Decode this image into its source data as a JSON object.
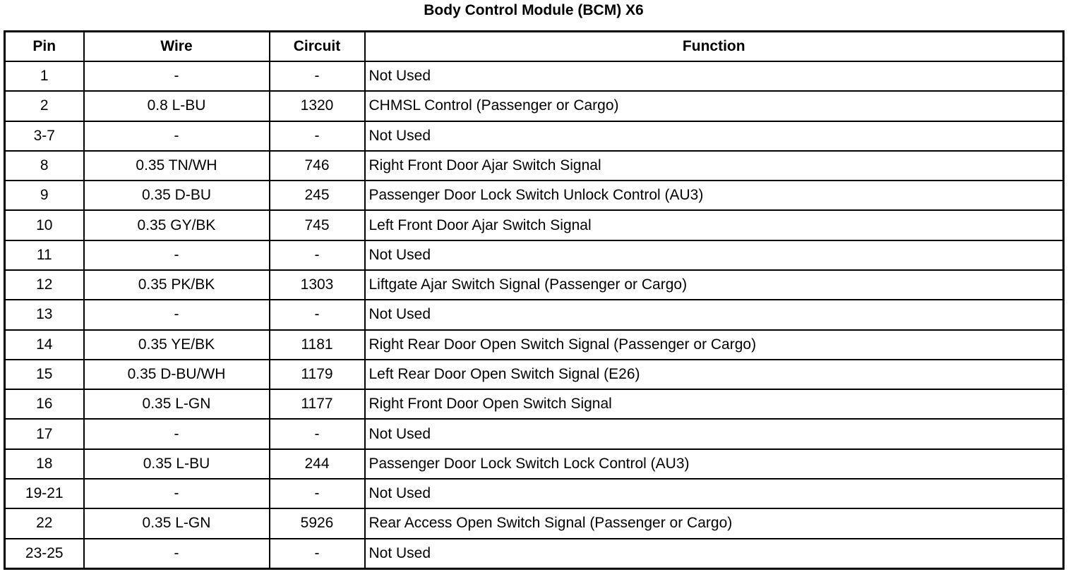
{
  "title": "Body Control Module (BCM) X6",
  "headers": {
    "pin": "Pin",
    "wire": "Wire",
    "circuit": "Circuit",
    "function": "Function"
  },
  "rows": [
    {
      "pin": "1",
      "wire": "-",
      "circuit": "-",
      "function": "Not Used"
    },
    {
      "pin": "2",
      "wire": "0.8 L-BU",
      "circuit": "1320",
      "function": "CHMSL Control (Passenger or Cargo)"
    },
    {
      "pin": "3-7",
      "wire": "-",
      "circuit": "-",
      "function": "Not Used"
    },
    {
      "pin": "8",
      "wire": "0.35 TN/WH",
      "circuit": "746",
      "function": "Right Front Door Ajar Switch Signal"
    },
    {
      "pin": "9",
      "wire": "0.35 D-BU",
      "circuit": "245",
      "function": "Passenger Door Lock Switch Unlock Control (AU3)"
    },
    {
      "pin": "10",
      "wire": "0.35 GY/BK",
      "circuit": "745",
      "function": "Left Front Door Ajar Switch Signal"
    },
    {
      "pin": "11",
      "wire": "-",
      "circuit": "-",
      "function": "Not Used"
    },
    {
      "pin": "12",
      "wire": "0.35 PK/BK",
      "circuit": "1303",
      "function": "Liftgate Ajar Switch Signal (Passenger or Cargo)"
    },
    {
      "pin": "13",
      "wire": "-",
      "circuit": "-",
      "function": "Not Used"
    },
    {
      "pin": "14",
      "wire": "0.35 YE/BK",
      "circuit": "1181",
      "function": "Right Rear Door Open Switch Signal (Passenger or Cargo)"
    },
    {
      "pin": "15",
      "wire": "0.35 D-BU/WH",
      "circuit": "1179",
      "function": "Left Rear Door Open Switch Signal (E26)"
    },
    {
      "pin": "16",
      "wire": "0.35 L-GN",
      "circuit": "1177",
      "function": "Right Front Door Open Switch Signal"
    },
    {
      "pin": "17",
      "wire": "-",
      "circuit": "-",
      "function": "Not Used"
    },
    {
      "pin": "18",
      "wire": "0.35 L-BU",
      "circuit": "244",
      "function": "Passenger Door Lock Switch Lock Control (AU3)"
    },
    {
      "pin": "19-21",
      "wire": "-",
      "circuit": "-",
      "function": "Not Used"
    },
    {
      "pin": "22",
      "wire": "0.35 L-GN",
      "circuit": "5926",
      "function": "Rear Access Open Switch Signal (Passenger or Cargo)"
    },
    {
      "pin": "23-25",
      "wire": "-",
      "circuit": "-",
      "function": "Not Used"
    }
  ]
}
